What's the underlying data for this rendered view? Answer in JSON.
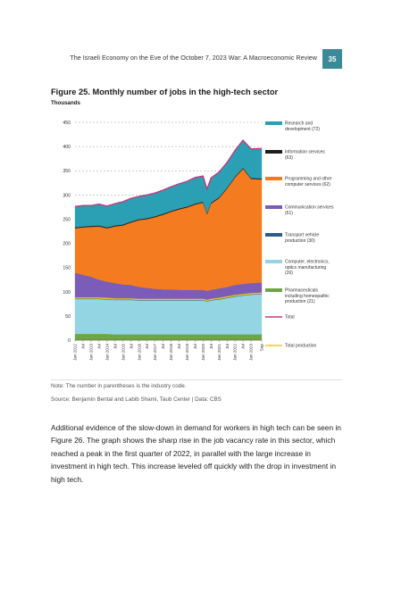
{
  "header": {
    "running_title": "The Israeli Economy on the Eve of the October 7, 2023 War: A Macroeconomic Review",
    "page_number": "35",
    "accent_color": "#3a8a9a"
  },
  "figure": {
    "title": "Figure 25. Monthly number of jobs in the high-tech sector",
    "unit_label": "Thousands",
    "note": "Note: The number in parentheses is the industry code.",
    "source": "Source: Benjamin Bental and Labib Shami, Taub Center | Data: CBS"
  },
  "chart_data": {
    "type": "area",
    "stacked": true,
    "ylim": [
      0,
      450
    ],
    "yticks": [
      "0",
      "50",
      "100",
      "150",
      "200",
      "250",
      "300",
      "350",
      "400",
      "450"
    ],
    "grid": "horizontal dashed",
    "legend_position": "right",
    "x_tick_labels": [
      "Jan 2012",
      "Jul",
      "Jan 2013",
      "Jul",
      "Jan 2014",
      "Jul",
      "Jan 2015",
      "Jul",
      "Jan 2016",
      "Jul",
      "Jan 2017",
      "Jul",
      "Jan 2018",
      "Jul",
      "Jan 2019",
      "Jul",
      "Jan 2020",
      "Jul",
      "Jan 2021",
      "Jul",
      "Jan 2022",
      "Jul",
      "Jan 2023",
      "Sep"
    ],
    "x": [
      "Jan 2012",
      "Jul 2012",
      "Jan 2013",
      "Jul 2013",
      "Jan 2014",
      "Jul 2014",
      "Jan 2015",
      "Jul 2015",
      "Jan 2016",
      "Jul 2016",
      "Jan 2017",
      "Jul 2017",
      "Jan 2018",
      "Jul 2018",
      "Jan 2019",
      "Jul 2019",
      "Jan 2020",
      "Apr 2020",
      "Jul 2020",
      "Jan 2021",
      "Jul 2021",
      "Jan 2022",
      "Jul 2022",
      "Jan 2023",
      "Sep 2023"
    ],
    "series": [
      {
        "name": "Pharmaceuticals including homeopathic production (21)",
        "color": "#6ea644",
        "values": [
          13,
          13,
          13,
          13,
          13,
          12,
          12,
          12,
          12,
          12,
          12,
          12,
          12,
          12,
          12,
          12,
          12,
          12,
          12,
          12,
          12,
          12,
          12,
          12,
          12
        ]
      },
      {
        "name": "Computer, electronics, optics manufacturing (26)",
        "color": "#93d5e3",
        "values": [
          72,
          72,
          72,
          72,
          71,
          71,
          71,
          71,
          70,
          70,
          70,
          70,
          70,
          70,
          70,
          70,
          70,
          68,
          70,
          72,
          75,
          78,
          80,
          82,
          83
        ]
      },
      {
        "name": "Transport vehicle production (30)",
        "color": "#2e5c8a",
        "values": [
          2,
          2,
          2,
          2,
          2,
          2,
          2,
          2,
          2,
          2,
          2,
          2,
          2,
          2,
          2,
          2,
          2,
          2,
          2,
          2,
          2,
          2,
          2,
          2,
          2
        ]
      },
      {
        "name": "Communication services (61)",
        "color": "#7b5cb8",
        "values": [
          52,
          48,
          44,
          38,
          35,
          33,
          30,
          29,
          26,
          24,
          22,
          21,
          21,
          20,
          20,
          20,
          20,
          20,
          20,
          21,
          21,
          22,
          22,
          22,
          22
        ]
      },
      {
        "name": "Programming and other computer services (62)",
        "color": "#f47b20",
        "values": [
          92,
          98,
          103,
          110,
          110,
          117,
          122,
          129,
          138,
          142,
          148,
          154,
          160,
          166,
          170,
          176,
          180,
          158,
          178,
          186,
          203,
          222,
          238,
          215,
          213
        ]
      },
      {
        "name": "Information services (63)",
        "color": "#1e1e1e",
        "values": [
          2,
          2,
          2,
          2,
          2,
          2,
          2,
          2,
          2,
          2,
          2,
          2,
          2,
          2,
          2,
          2,
          2,
          2,
          2,
          2,
          2,
          2,
          2,
          2,
          2
        ]
      },
      {
        "name": "Research and development (72)",
        "color": "#2b9fb3",
        "values": [
          43,
          43,
          42,
          44,
          44,
          45,
          47,
          48,
          47,
          48,
          48,
          49,
          50,
          51,
          52,
          54,
          53,
          50,
          51,
          52,
          52,
          54,
          57,
          60,
          62
        ]
      }
    ],
    "lines": [
      {
        "name": "Total",
        "color": "#c43a7e",
        "values": [
          276,
          278,
          278,
          281,
          277,
          282,
          286,
          293,
          297,
          300,
          304,
          310,
          317,
          323,
          328,
          336,
          339,
          312,
          335,
          347,
          367,
          392,
          413,
          395,
          396
        ]
      },
      {
        "name": "Total production",
        "color": "#f2c811",
        "values": [
          87,
          87,
          87,
          87,
          86,
          85,
          85,
          85,
          84,
          84,
          84,
          84,
          84,
          84,
          84,
          84,
          84,
          82,
          84,
          86,
          89,
          92,
          94,
          96,
          97
        ]
      }
    ],
    "legend": [
      {
        "name": "Research and development (72)",
        "color": "#2b9fb3",
        "kind": "area"
      },
      {
        "name": "Information services (63)",
        "color": "#1e1e1e",
        "kind": "area"
      },
      {
        "name": "Programming and other computer services (62)",
        "color": "#f47b20",
        "kind": "area"
      },
      {
        "name": "Communication services (61)",
        "color": "#7b5cb8",
        "kind": "area"
      },
      {
        "name": "Transport vehicle production (30)",
        "color": "#2e5c8a",
        "kind": "area"
      },
      {
        "name": "Computer, electronics, optics manufacturing (26)",
        "color": "#93d5e3",
        "kind": "area"
      },
      {
        "name": "Pharmaceuticals including homeopathic production (21)",
        "color": "#6ea644",
        "kind": "area"
      },
      {
        "name": "Total",
        "color": "#c43a7e",
        "kind": "line"
      },
      {
        "name": "Total production",
        "color": "#f2c811",
        "kind": "line"
      }
    ]
  },
  "body_text": "Additional evidence of the slow-down in demand for workers in high tech can be seen in Figure 26. The graph shows the sharp rise in the job vacancy rate in this sector, which reached a peak in the first quarter of 2022, in parallel with the large increase in investment in high tech. This increase leveled off quickly with the drop in investment in high tech."
}
